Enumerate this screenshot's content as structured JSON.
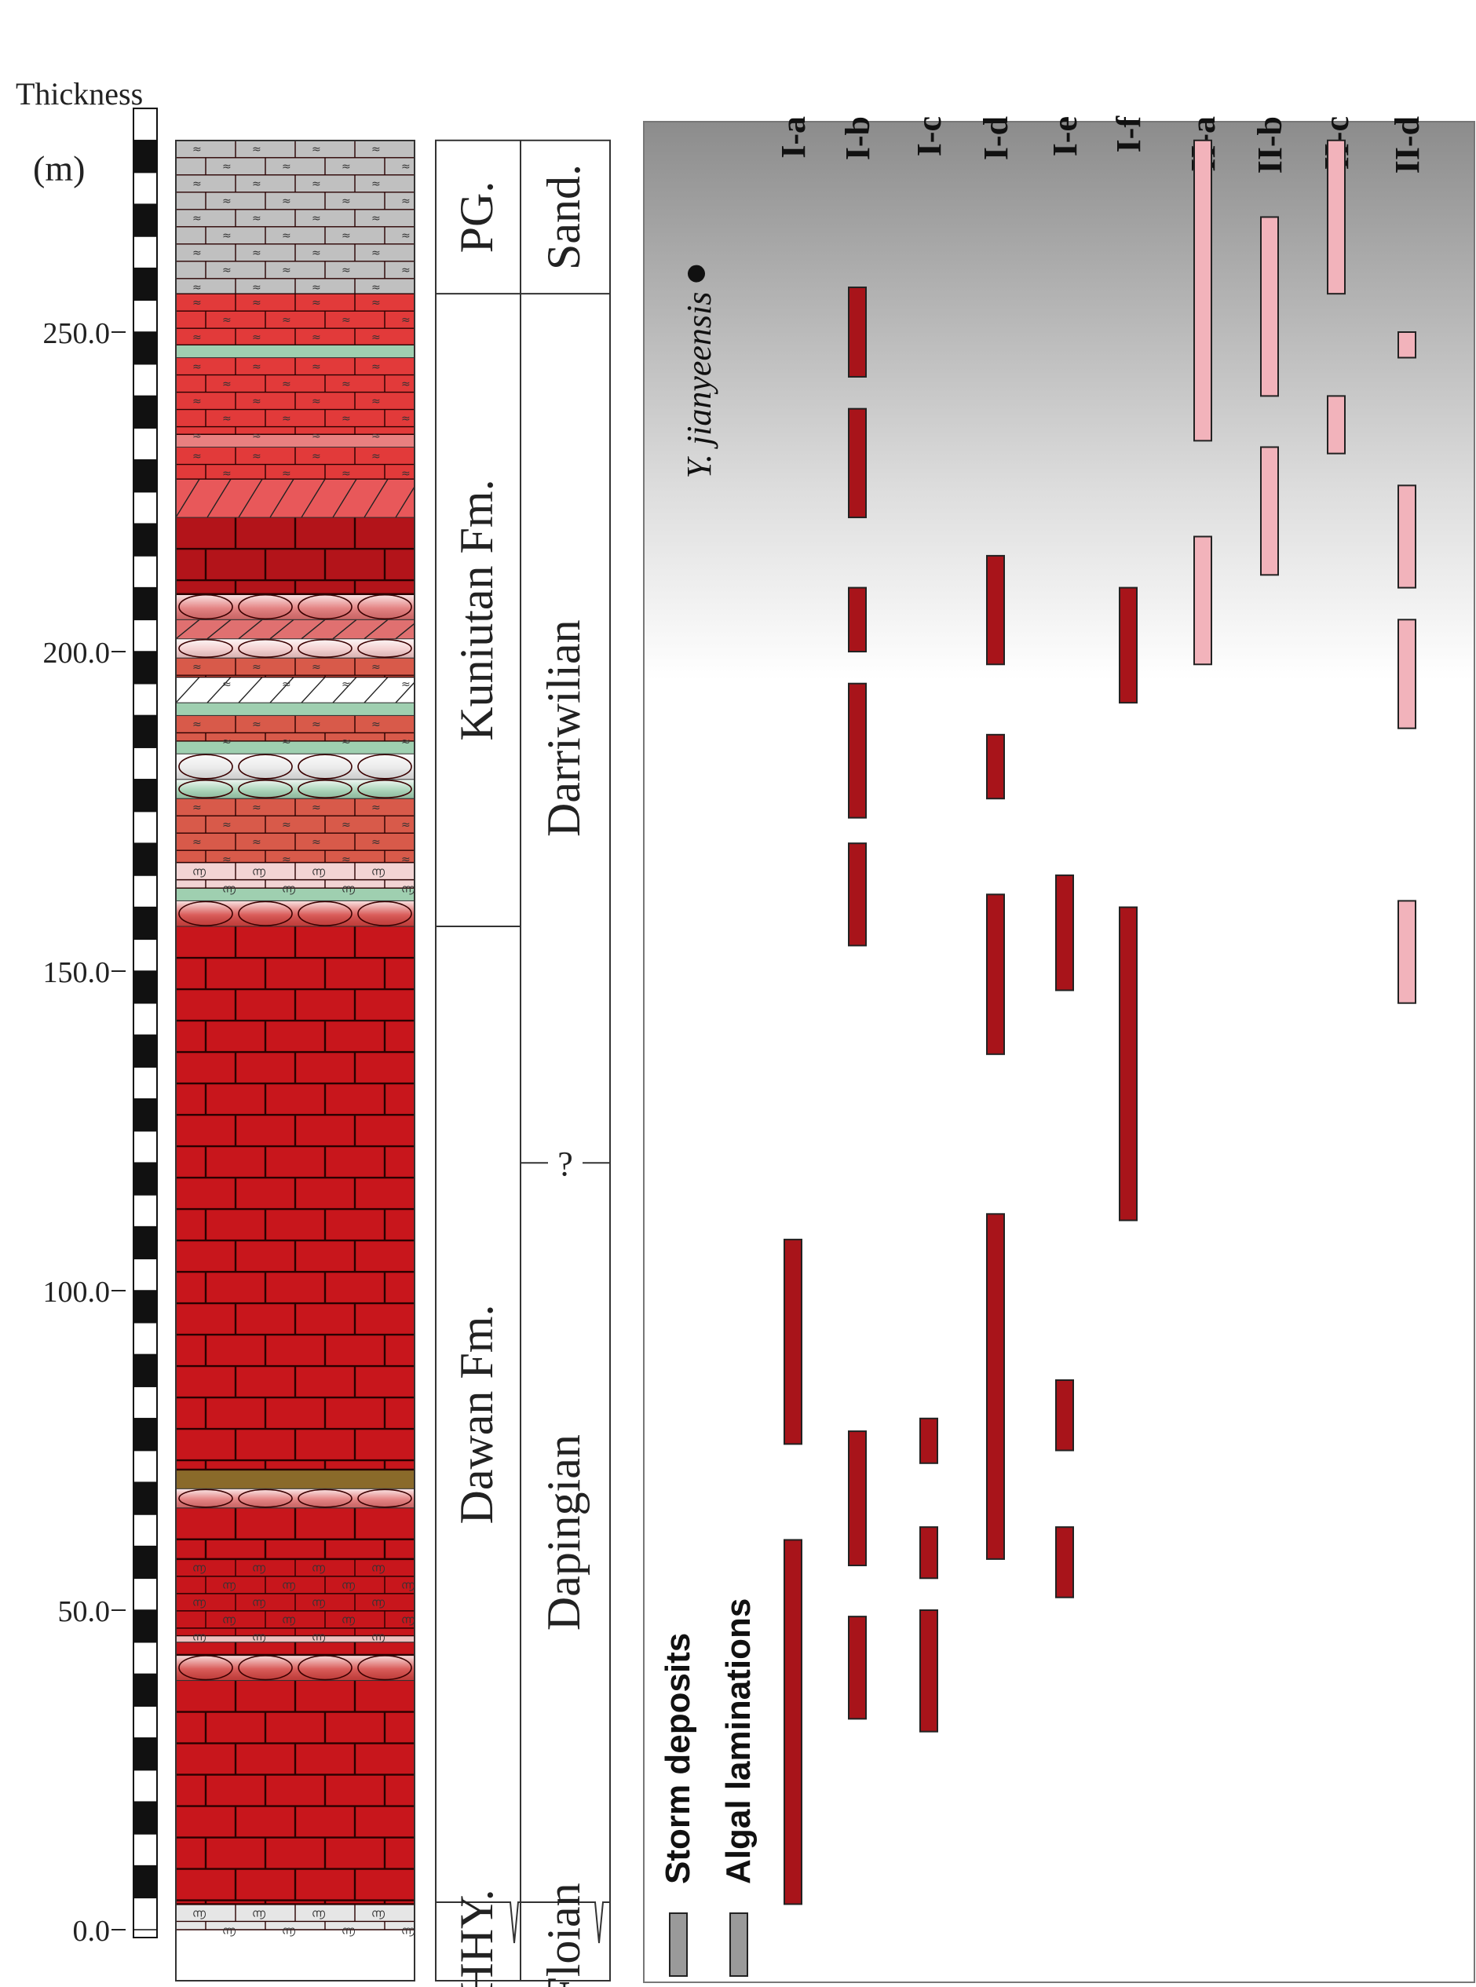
{
  "axis": {
    "title": "Thickness",
    "unit": "(m)",
    "ticks": [
      {
        "value": 0,
        "label": "0.0"
      },
      {
        "value": 50,
        "label": "50.0"
      },
      {
        "value": 100,
        "label": "100.0"
      },
      {
        "value": 150,
        "label": "150.0"
      },
      {
        "value": 200,
        "label": "200.0"
      },
      {
        "value": 250,
        "label": "250.0"
      }
    ],
    "min": 0,
    "max": 280
  },
  "formations": [
    {
      "label": "PG.",
      "from": 256,
      "to": 280
    },
    {
      "label": "Kuniutan Fm.",
      "from": 157,
      "to": 256
    },
    {
      "label": "Dawan Fm.",
      "from": 4,
      "to": 157
    },
    {
      "label": "HHY.",
      "from": 0,
      "to": 4
    }
  ],
  "stages": [
    {
      "label": "Sand.",
      "from": 256,
      "to": 280
    },
    {
      "label": "Darriwilian",
      "from": 120,
      "to": 256
    },
    {
      "label": "Dapingian",
      "from": 4,
      "to": 120
    },
    {
      "label": "Floian",
      "from": 0,
      "to": 4
    }
  ],
  "boundary_query": "?",
  "species_marker": {
    "label": "Y. jianyeensis",
    "value": 260
  },
  "columns": [
    "I-a",
    "I-b",
    "I-c",
    "I-d",
    "I-e",
    "I-f",
    "II-a",
    "II-b",
    "II-c",
    "II-d"
  ],
  "legend": {
    "storm": "Storm deposits",
    "algal": "Algal laminations"
  },
  "colors": {
    "storm_fill": "#a8141a",
    "algal_fill": "#f2b3bb",
    "legend_fill": "#9a9a9a",
    "limestone_red": "#c8161c",
    "limestone_grey": "#bdbdbd",
    "green_band": "#9fcfb0"
  },
  "range_bars": [
    {
      "column": "I-a",
      "kind": "storm",
      "from": 4,
      "to": 61
    },
    {
      "column": "I-a",
      "kind": "storm",
      "from": 76,
      "to": 108
    },
    {
      "column": "I-b",
      "kind": "storm",
      "from": 33,
      "to": 49
    },
    {
      "column": "I-b",
      "kind": "storm",
      "from": 57,
      "to": 78
    },
    {
      "column": "I-b",
      "kind": "storm",
      "from": 154,
      "to": 170
    },
    {
      "column": "I-b",
      "kind": "storm",
      "from": 174,
      "to": 195
    },
    {
      "column": "I-b",
      "kind": "storm",
      "from": 200,
      "to": 210
    },
    {
      "column": "I-b",
      "kind": "storm",
      "from": 221,
      "to": 238
    },
    {
      "column": "I-b",
      "kind": "storm",
      "from": 243,
      "to": 257
    },
    {
      "column": "I-c",
      "kind": "storm",
      "from": 31,
      "to": 50
    },
    {
      "column": "I-c",
      "kind": "storm",
      "from": 55,
      "to": 63
    },
    {
      "column": "I-c",
      "kind": "storm",
      "from": 73,
      "to": 80
    },
    {
      "column": "I-d",
      "kind": "storm",
      "from": 58,
      "to": 112
    },
    {
      "column": "I-d",
      "kind": "storm",
      "from": 137,
      "to": 162
    },
    {
      "column": "I-d",
      "kind": "storm",
      "from": 177,
      "to": 187
    },
    {
      "column": "I-d",
      "kind": "storm",
      "from": 198,
      "to": 215
    },
    {
      "column": "I-e",
      "kind": "storm",
      "from": 52,
      "to": 63
    },
    {
      "column": "I-e",
      "kind": "storm",
      "from": 75,
      "to": 86
    },
    {
      "column": "I-e",
      "kind": "storm",
      "from": 147,
      "to": 165
    },
    {
      "column": "I-f",
      "kind": "storm",
      "from": 111,
      "to": 160
    },
    {
      "column": "I-f",
      "kind": "storm",
      "from": 192,
      "to": 210
    },
    {
      "column": "II-a",
      "kind": "algal",
      "from": 198,
      "to": 218
    },
    {
      "column": "II-a",
      "kind": "algal",
      "from": 233,
      "to": 280
    },
    {
      "column": "II-b",
      "kind": "algal",
      "from": 212,
      "to": 232
    },
    {
      "column": "II-b",
      "kind": "algal",
      "from": 240,
      "to": 268
    },
    {
      "column": "II-c",
      "kind": "algal",
      "from": 231,
      "to": 240
    },
    {
      "column": "II-c",
      "kind": "algal",
      "from": 256,
      "to": 280
    },
    {
      "column": "II-d",
      "kind": "algal",
      "from": 145,
      "to": 161
    },
    {
      "column": "II-d",
      "kind": "algal",
      "from": 188,
      "to": 205
    },
    {
      "column": "II-d",
      "kind": "algal",
      "from": 210,
      "to": 226
    },
    {
      "column": "II-d",
      "kind": "algal",
      "from": 246,
      "to": 250
    }
  ],
  "lithology": [
    {
      "from": 0,
      "to": 4,
      "type": "fossil",
      "color": "#e6e6e6"
    },
    {
      "from": 4,
      "to": 39,
      "type": "brick",
      "color": "#c8161c"
    },
    {
      "from": 39,
      "to": 43,
      "type": "nodular",
      "color": "#d4423f"
    },
    {
      "from": 43,
      "to": 45,
      "type": "brick",
      "color": "#c8161c"
    },
    {
      "from": 45,
      "to": 46,
      "type": "plain",
      "color": "#f0c0c0"
    },
    {
      "from": 46,
      "to": 58,
      "type": "fossil",
      "color": "#c8161c"
    },
    {
      "from": 58,
      "to": 66,
      "type": "brick",
      "color": "#c8161c"
    },
    {
      "from": 66,
      "to": 69,
      "type": "nodular",
      "color": "#e07070"
    },
    {
      "from": 69,
      "to": 72,
      "type": "plain",
      "color": "#8a6a2a"
    },
    {
      "from": 72,
      "to": 157,
      "type": "brick",
      "color": "#c8161c"
    },
    {
      "from": 157,
      "to": 161,
      "type": "nodular",
      "color": "#d4423f"
    },
    {
      "from": 161,
      "to": 163,
      "type": "plain",
      "color": "#9fcfb0"
    },
    {
      "from": 163,
      "to": 167,
      "type": "fossil",
      "color": "#f2d4d4"
    },
    {
      "from": 167,
      "to": 177,
      "type": "marly",
      "color": "#d85a4a"
    },
    {
      "from": 177,
      "to": 180,
      "type": "nodular",
      "color": "#9fcfb0"
    },
    {
      "from": 180,
      "to": 184,
      "type": "nodular",
      "color": "#e7e7e7"
    },
    {
      "from": 184,
      "to": 186,
      "type": "plain",
      "color": "#9fcfb0"
    },
    {
      "from": 186,
      "to": 190,
      "type": "marly",
      "color": "#d85a4a"
    },
    {
      "from": 190,
      "to": 192,
      "type": "plain",
      "color": "#9fcfb0"
    },
    {
      "from": 192,
      "to": 196,
      "type": "dolo",
      "color": "#ffffff"
    },
    {
      "from": 196,
      "to": 199,
      "type": "marly",
      "color": "#d85a4a"
    },
    {
      "from": 199,
      "to": 202,
      "type": "nodular",
      "color": "#f2c8c8"
    },
    {
      "from": 202,
      "to": 205,
      "type": "dolo",
      "color": "#e07070"
    },
    {
      "from": 205,
      "to": 209,
      "type": "nodular",
      "color": "#e07070"
    },
    {
      "from": 209,
      "to": 221,
      "type": "brick",
      "color": "#b3141a"
    },
    {
      "from": 221,
      "to": 227,
      "type": "dolo",
      "color": "#e8585a"
    },
    {
      "from": 227,
      "to": 232,
      "type": "marly",
      "color": "#e23a3a"
    },
    {
      "from": 232,
      "to": 234,
      "type": "plain",
      "color": "#e88080"
    },
    {
      "from": 234,
      "to": 246,
      "type": "marly",
      "color": "#e23a3a"
    },
    {
      "from": 246,
      "to": 248,
      "type": "plain",
      "color": "#9fcfb0"
    },
    {
      "from": 248,
      "to": 256,
      "type": "marly",
      "color": "#e23a3a"
    },
    {
      "from": 256,
      "to": 280,
      "type": "marly",
      "color": "#c0c0c0"
    }
  ]
}
